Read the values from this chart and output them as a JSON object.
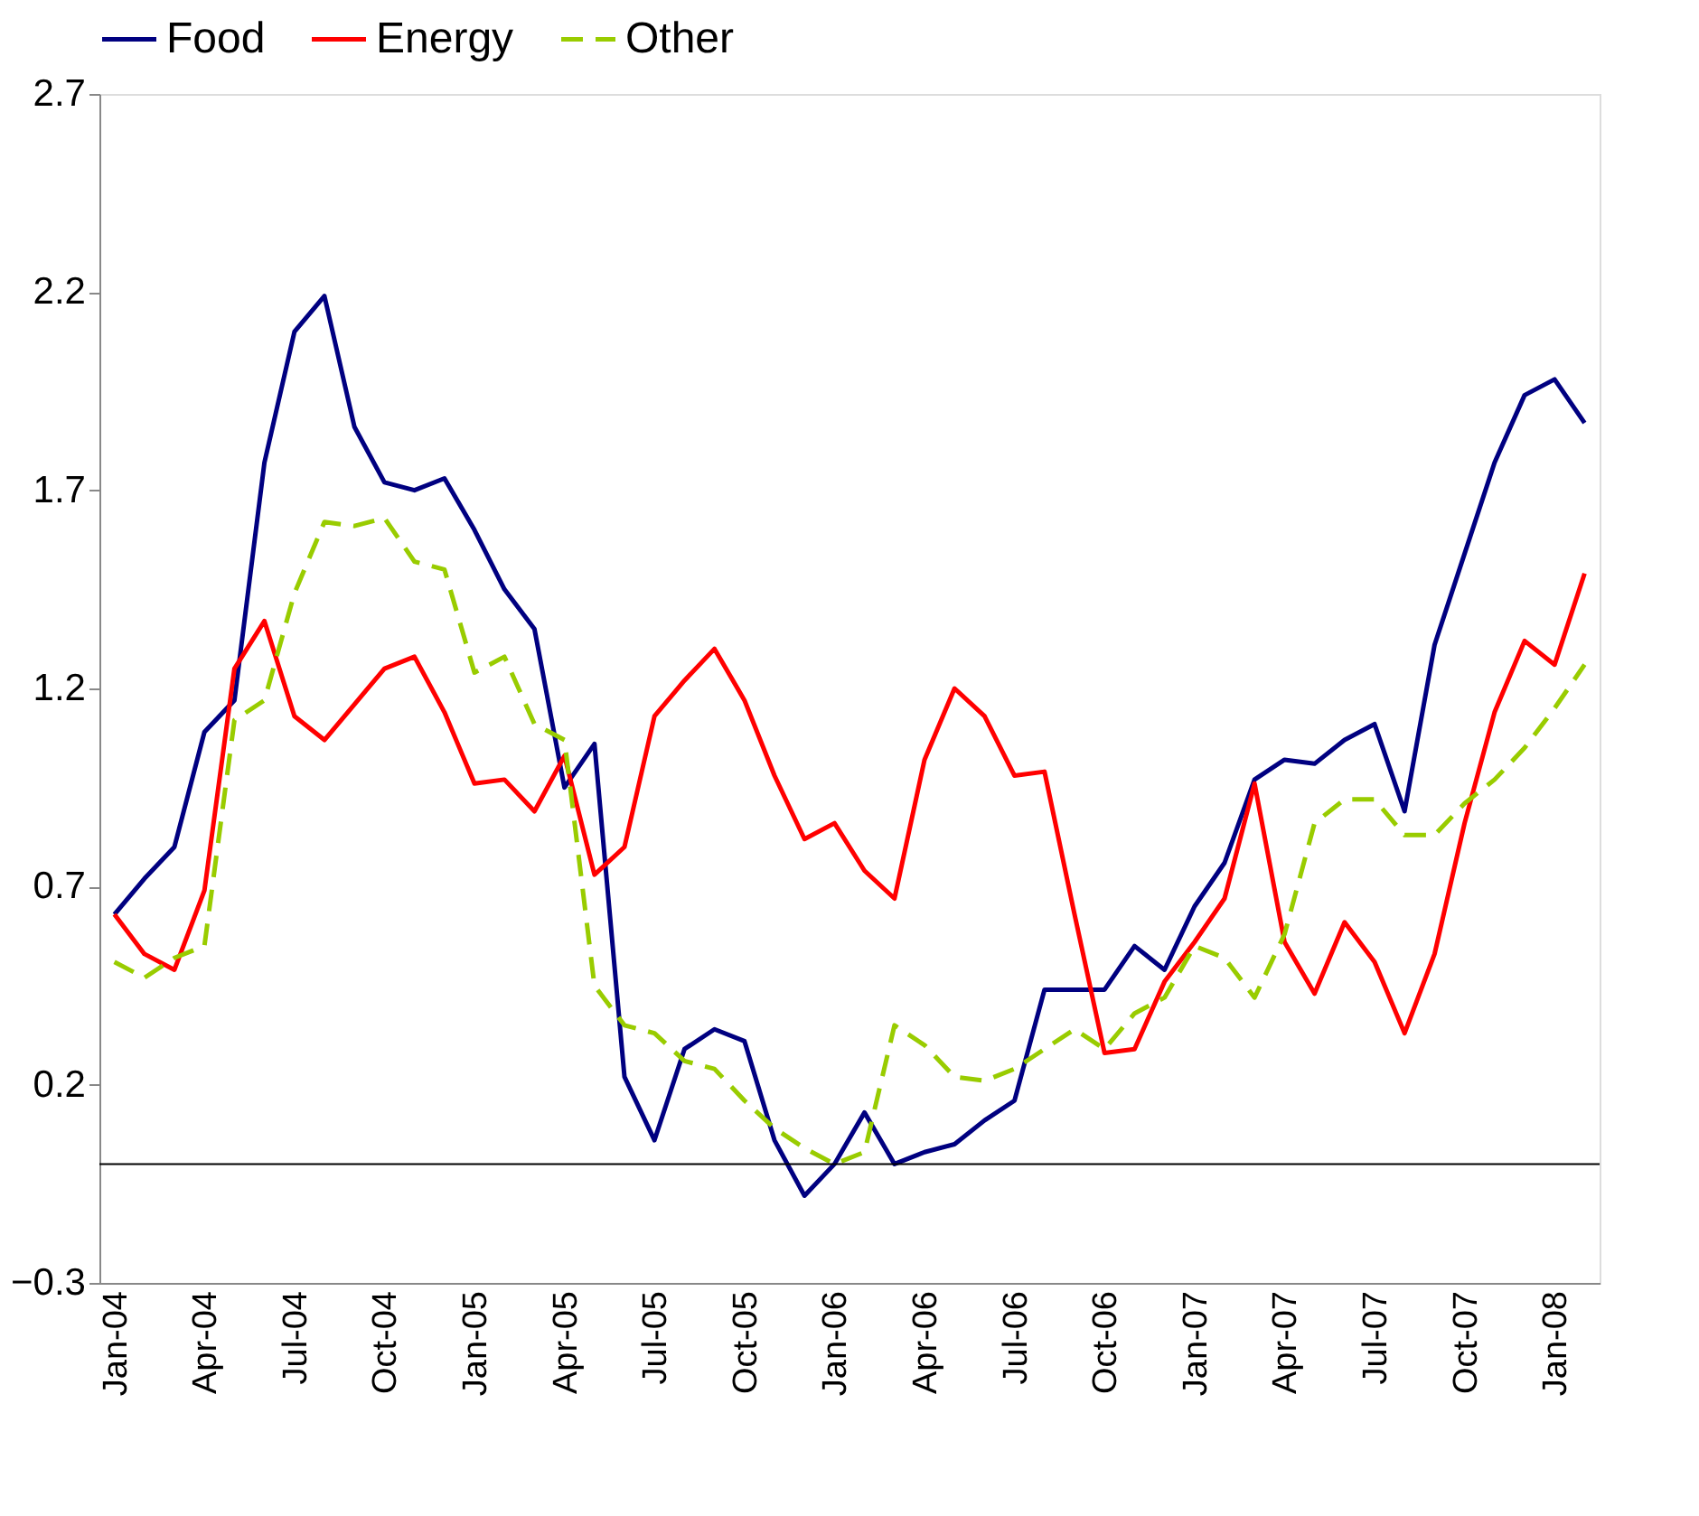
{
  "chart_data": {
    "type": "line",
    "categories": [
      "Jan-04",
      null,
      null,
      "Apr-04",
      null,
      null,
      "Jul-04",
      null,
      null,
      "Oct-04",
      null,
      null,
      "Jan-05",
      null,
      null,
      "Apr-05",
      null,
      null,
      "Jul-05",
      null,
      null,
      "Oct-05",
      null,
      null,
      "Jan-06",
      null,
      null,
      "Apr-06",
      null,
      null,
      "Jul-06",
      null,
      null,
      "Oct-06",
      null,
      null,
      "Jan-07",
      null,
      null,
      "Apr-07",
      null,
      null,
      "Jul-07",
      null,
      null,
      "Oct-07",
      null,
      null,
      "Jan-08",
      null
    ],
    "series": [
      {
        "name": "Food",
        "color": "#000080",
        "line_style": "solid",
        "values": [
          0.63,
          0.72,
          0.8,
          1.09,
          1.17,
          1.77,
          2.1,
          2.19,
          1.86,
          1.72,
          1.7,
          1.73,
          1.6,
          1.45,
          1.35,
          0.95,
          1.06,
          0.22,
          0.06,
          0.29,
          0.34,
          0.31,
          0.06,
          -0.08,
          0.0,
          0.13,
          0.0,
          0.03,
          0.05,
          0.11,
          0.16,
          0.44,
          0.44,
          0.44,
          0.55,
          0.49,
          0.65,
          0.76,
          0.97,
          1.02,
          1.01,
          1.07,
          1.11,
          0.89,
          1.31,
          1.54,
          1.77,
          1.94,
          1.98,
          1.87
        ]
      },
      {
        "name": "Energy",
        "color": "#ff0000",
        "line_style": "solid",
        "values": [
          0.63,
          0.53,
          0.49,
          0.69,
          1.25,
          1.37,
          1.13,
          1.07,
          1.16,
          1.25,
          1.28,
          1.14,
          0.96,
          0.97,
          0.89,
          1.03,
          0.73,
          0.8,
          1.13,
          1.22,
          1.3,
          1.17,
          0.98,
          0.82,
          0.86,
          0.74,
          0.67,
          1.02,
          1.2,
          1.13,
          0.98,
          0.99,
          0.63,
          0.28,
          0.29,
          0.46,
          0.56,
          0.67,
          0.96,
          0.56,
          0.43,
          0.61,
          0.51,
          0.33,
          0.53,
          0.86,
          1.14,
          1.32,
          1.26,
          1.49
        ]
      },
      {
        "name": "Other",
        "color": "#99cc00",
        "line_style": "dashed",
        "values": [
          0.51,
          0.47,
          0.52,
          0.55,
          1.12,
          1.17,
          1.44,
          1.62,
          1.61,
          1.63,
          1.52,
          1.5,
          1.24,
          1.28,
          1.11,
          1.07,
          0.45,
          0.35,
          0.33,
          0.26,
          0.24,
          0.16,
          0.09,
          0.04,
          0.0,
          0.03,
          0.35,
          0.3,
          0.22,
          0.21,
          0.24,
          0.29,
          0.34,
          0.29,
          0.38,
          0.42,
          0.55,
          0.52,
          0.42,
          0.58,
          0.86,
          0.92,
          0.92,
          0.83,
          0.83,
          0.91,
          0.97,
          1.05,
          1.15,
          1.26
        ]
      }
    ],
    "ylim": [
      -0.3,
      2.7
    ],
    "yticks": [
      -0.3,
      0.2,
      0.7,
      1.2,
      1.7,
      2.2,
      2.7
    ],
    "ref_lines": [
      {
        "axis": "y",
        "value": 0
      }
    ],
    "grid": false,
    "legend": "top",
    "marker": "none"
  }
}
